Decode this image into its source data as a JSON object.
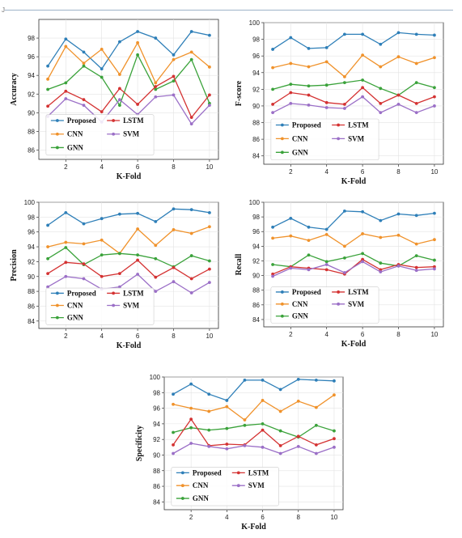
{
  "corner_mark": "J",
  "colors": {
    "Proposed": "#2e7fb8",
    "CNN": "#f0922b",
    "GNN": "#3aa23a",
    "LSTM": "#d43232",
    "SVM": "#9b6fc7"
  },
  "chart_data": [
    {
      "id": "accuracy",
      "type": "line",
      "xlabel": "K-Fold",
      "ylabel": "Accuracy",
      "x": [
        1,
        2,
        3,
        4,
        5,
        6,
        7,
        8,
        9,
        10
      ],
      "xticks": [
        2,
        4,
        6,
        8,
        10
      ],
      "ylim": [
        85,
        100
      ],
      "yticks": [
        86,
        88,
        90,
        92,
        94,
        96,
        98
      ],
      "grid": true,
      "legend": "lower-center",
      "series": [
        {
          "name": "Proposed",
          "values": [
            95.0,
            97.9,
            96.5,
            94.7,
            97.6,
            98.7,
            98.0,
            96.2,
            98.7,
            98.3
          ]
        },
        {
          "name": "CNN",
          "values": [
            93.6,
            97.1,
            95.3,
            96.8,
            94.1,
            97.5,
            93.2,
            95.7,
            96.5,
            94.9
          ]
        },
        {
          "name": "GNN",
          "values": [
            92.5,
            93.2,
            95.0,
            93.8,
            90.8,
            96.2,
            92.5,
            93.4,
            95.7,
            91.0
          ]
        },
        {
          "name": "LSTM",
          "values": [
            90.7,
            92.3,
            91.4,
            90.1,
            92.6,
            90.9,
            92.8,
            93.9,
            89.5,
            91.9
          ]
        },
        {
          "name": "SVM",
          "values": [
            89.6,
            91.5,
            90.8,
            89.0,
            91.4,
            89.8,
            91.7,
            91.9,
            88.8,
            90.8
          ]
        }
      ]
    },
    {
      "id": "fscore",
      "type": "line",
      "xlabel": "K-Fold",
      "ylabel": "F-score",
      "x": [
        1,
        2,
        3,
        4,
        5,
        6,
        7,
        8,
        9,
        10
      ],
      "xticks": [
        2,
        4,
        6,
        8,
        10
      ],
      "ylim": [
        83,
        100
      ],
      "yticks": [
        84,
        86,
        88,
        90,
        92,
        94,
        96,
        98,
        100
      ],
      "grid": true,
      "legend": "lower-center",
      "series": [
        {
          "name": "Proposed",
          "values": [
            96.8,
            98.2,
            96.9,
            97.0,
            98.6,
            98.6,
            97.4,
            98.8,
            98.6,
            98.5
          ]
        },
        {
          "name": "CNN",
          "values": [
            94.6,
            95.1,
            94.7,
            95.3,
            93.5,
            96.1,
            94.7,
            95.9,
            95.1,
            95.8
          ]
        },
        {
          "name": "GNN",
          "values": [
            92.0,
            92.6,
            92.4,
            92.5,
            92.8,
            93.1,
            92.1,
            91.3,
            92.8,
            92.2
          ]
        },
        {
          "name": "LSTM",
          "values": [
            90.2,
            91.6,
            91.3,
            90.4,
            90.2,
            92.2,
            90.3,
            91.3,
            90.3,
            91.1
          ]
        },
        {
          "name": "SVM",
          "values": [
            89.2,
            90.3,
            90.1,
            89.8,
            89.7,
            91.1,
            89.2,
            90.2,
            89.2,
            90.0
          ]
        }
      ]
    },
    {
      "id": "precision",
      "type": "line",
      "xlabel": "K-Fold",
      "ylabel": "Precision",
      "x": [
        1,
        2,
        3,
        4,
        5,
        6,
        7,
        8,
        9,
        10
      ],
      "xticks": [
        2,
        4,
        6,
        8,
        10
      ],
      "ylim": [
        83,
        100
      ],
      "yticks": [
        84,
        86,
        88,
        90,
        92,
        94,
        96,
        98,
        100
      ],
      "grid": true,
      "legend": "lower-center",
      "series": [
        {
          "name": "Proposed",
          "values": [
            96.9,
            98.6,
            97.1,
            97.8,
            98.4,
            98.5,
            97.4,
            99.1,
            99.0,
            98.6
          ]
        },
        {
          "name": "CNN",
          "values": [
            94.0,
            94.6,
            94.4,
            94.9,
            93.1,
            96.4,
            94.2,
            96.3,
            95.8,
            96.7
          ]
        },
        {
          "name": "GNN",
          "values": [
            92.4,
            93.9,
            91.6,
            92.9,
            93.1,
            92.9,
            92.4,
            91.3,
            92.8,
            92.1
          ]
        },
        {
          "name": "LSTM",
          "values": [
            90.4,
            91.9,
            91.7,
            90.0,
            90.4,
            92.2,
            89.9,
            91.2,
            89.7,
            91.0
          ]
        },
        {
          "name": "SVM",
          "values": [
            88.6,
            90.0,
            89.7,
            88.3,
            88.6,
            90.3,
            88.0,
            89.3,
            87.8,
            89.2
          ]
        }
      ]
    },
    {
      "id": "recall",
      "type": "line",
      "xlabel": "K-Fold",
      "ylabel": "Recall",
      "x": [
        1,
        2,
        3,
        4,
        5,
        6,
        7,
        8,
        9,
        10
      ],
      "xticks": [
        2,
        4,
        6,
        8,
        10
      ],
      "ylim": [
        83,
        100
      ],
      "yticks": [
        84,
        86,
        88,
        90,
        92,
        94,
        96,
        98,
        100
      ],
      "grid": true,
      "legend": "lower-center",
      "series": [
        {
          "name": "Proposed",
          "values": [
            96.6,
            97.8,
            96.6,
            96.3,
            98.8,
            98.7,
            97.5,
            98.4,
            98.2,
            98.5
          ]
        },
        {
          "name": "CNN",
          "values": [
            95.1,
            95.4,
            94.8,
            95.6,
            94.0,
            95.7,
            95.2,
            95.5,
            94.3,
            94.9
          ]
        },
        {
          "name": "GNN",
          "values": [
            91.5,
            91.2,
            92.8,
            91.9,
            92.4,
            93.0,
            91.7,
            91.3,
            92.7,
            92.1
          ]
        },
        {
          "name": "LSTM",
          "values": [
            90.2,
            91.2,
            91.0,
            90.8,
            90.2,
            92.2,
            90.8,
            91.5,
            91.1,
            91.2
          ]
        },
        {
          "name": "SVM",
          "values": [
            89.9,
            91.0,
            90.8,
            91.5,
            90.4,
            91.9,
            90.5,
            91.3,
            90.7,
            90.9
          ]
        }
      ]
    },
    {
      "id": "specificity",
      "type": "line",
      "xlabel": "K-Fold",
      "ylabel": "Specificity",
      "x": [
        1,
        2,
        3,
        4,
        5,
        6,
        7,
        8,
        9,
        10
      ],
      "xticks": [
        2,
        4,
        6,
        8,
        10
      ],
      "ylim": [
        83,
        100
      ],
      "yticks": [
        84,
        86,
        88,
        90,
        92,
        94,
        96,
        98,
        100
      ],
      "grid": true,
      "legend": "lower-center",
      "series": [
        {
          "name": "Proposed",
          "values": [
            97.8,
            99.1,
            97.8,
            97.0,
            99.6,
            99.6,
            98.4,
            99.7,
            99.6,
            99.5
          ]
        },
        {
          "name": "CNN",
          "values": [
            96.5,
            96.0,
            95.6,
            96.2,
            94.5,
            97.0,
            95.6,
            96.9,
            96.1,
            97.7
          ]
        },
        {
          "name": "GNN",
          "values": [
            92.9,
            93.5,
            93.2,
            93.4,
            93.8,
            94.0,
            93.1,
            92.3,
            93.8,
            93.1
          ]
        },
        {
          "name": "LSTM",
          "values": [
            91.3,
            94.6,
            91.2,
            91.4,
            91.3,
            93.2,
            91.2,
            92.4,
            91.3,
            92.1
          ]
        },
        {
          "name": "SVM",
          "values": [
            90.2,
            91.5,
            91.1,
            90.8,
            91.2,
            91.0,
            90.2,
            91.1,
            90.2,
            91.0
          ]
        }
      ]
    }
  ]
}
